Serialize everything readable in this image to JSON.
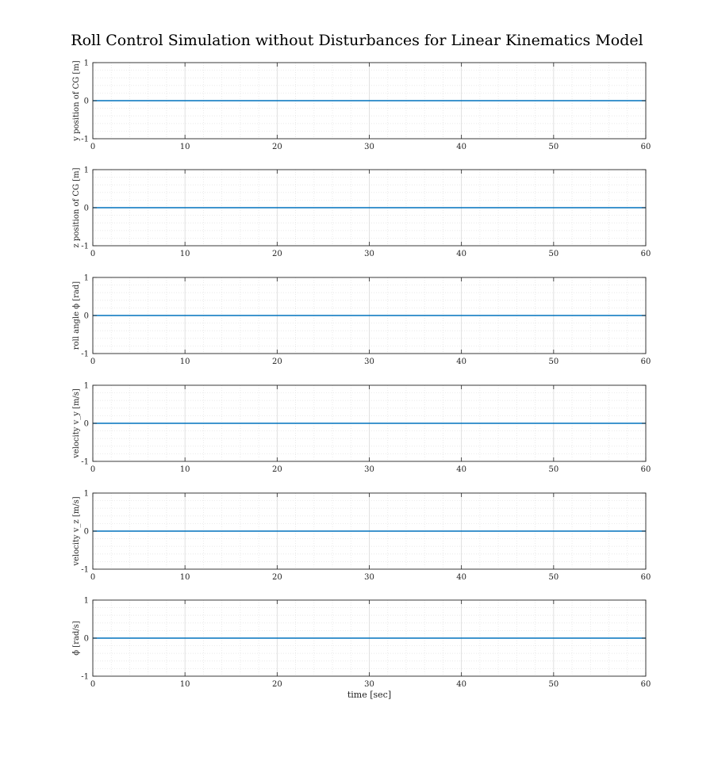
{
  "figure": {
    "title": "Roll Control Simulation without Disturbances for Linear Kinematics Model"
  },
  "style": {
    "line_color": "#0072BD",
    "major_grid_color": "#d9d9d9",
    "minor_grid_color": "#e6e6e6",
    "axis_color": "#262626"
  },
  "chart_data": [
    {
      "type": "line",
      "ylabel": "y position of CG [m]",
      "xlabel": "",
      "xlim": [
        0,
        60
      ],
      "ylim": [
        -1,
        1
      ],
      "xticks": [
        "0",
        "10",
        "20",
        "30",
        "40",
        "50",
        "60"
      ],
      "yticks": [
        "-1",
        "0",
        "1"
      ],
      "grid": true,
      "minor_grid": true,
      "series": [
        {
          "x": [
            0,
            60
          ],
          "y": [
            0,
            0
          ]
        }
      ]
    },
    {
      "type": "line",
      "ylabel": "z position of CG [m]",
      "xlabel": "",
      "xlim": [
        0,
        60
      ],
      "ylim": [
        -1,
        1
      ],
      "xticks": [
        "0",
        "10",
        "20",
        "30",
        "40",
        "50",
        "60"
      ],
      "yticks": [
        "-1",
        "0",
        "1"
      ],
      "grid": true,
      "minor_grid": true,
      "series": [
        {
          "x": [
            0,
            60
          ],
          "y": [
            0,
            0
          ]
        }
      ]
    },
    {
      "type": "line",
      "ylabel": "roll angle ϕ [rad]",
      "xlabel": "",
      "xlim": [
        0,
        60
      ],
      "ylim": [
        -1,
        1
      ],
      "xticks": [
        "0",
        "10",
        "20",
        "30",
        "40",
        "50",
        "60"
      ],
      "yticks": [
        "-1",
        "0",
        "1"
      ],
      "grid": true,
      "minor_grid": true,
      "series": [
        {
          "x": [
            0,
            60
          ],
          "y": [
            0,
            0
          ]
        }
      ]
    },
    {
      "type": "line",
      "ylabel": "velocity v_y [m/s]",
      "xlabel": "",
      "xlim": [
        0,
        60
      ],
      "ylim": [
        -1,
        1
      ],
      "xticks": [
        "0",
        "10",
        "20",
        "30",
        "40",
        "50",
        "60"
      ],
      "yticks": [
        "-1",
        "0",
        "1"
      ],
      "grid": true,
      "minor_grid": true,
      "series": [
        {
          "x": [
            0,
            60
          ],
          "y": [
            0,
            0
          ]
        }
      ]
    },
    {
      "type": "line",
      "ylabel": "velocity v_z [m/s]",
      "xlabel": "",
      "xlim": [
        0,
        60
      ],
      "ylim": [
        -1,
        1
      ],
      "xticks": [
        "0",
        "10",
        "20",
        "30",
        "40",
        "50",
        "60"
      ],
      "yticks": [
        "-1",
        "0",
        "1"
      ],
      "grid": true,
      "minor_grid": true,
      "series": [
        {
          "x": [
            0,
            60
          ],
          "y": [
            0,
            0
          ]
        }
      ]
    },
    {
      "type": "line",
      "ylabel": "ϕ̇ [rad/s]",
      "xlabel": "time [sec]",
      "xlim": [
        0,
        60
      ],
      "ylim": [
        -1,
        1
      ],
      "xticks": [
        "0",
        "10",
        "20",
        "30",
        "40",
        "50",
        "60"
      ],
      "yticks": [
        "-1",
        "0",
        "1"
      ],
      "grid": true,
      "minor_grid": true,
      "series": [
        {
          "x": [
            0,
            60
          ],
          "y": [
            0,
            0
          ]
        }
      ]
    }
  ]
}
